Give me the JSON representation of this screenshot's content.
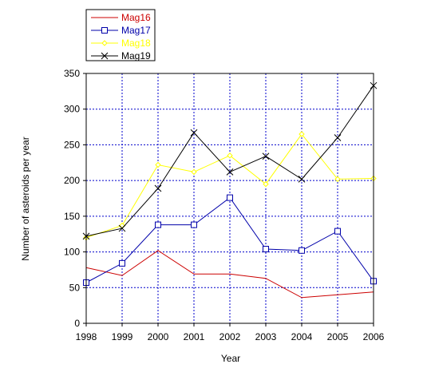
{
  "chart_data": {
    "type": "line",
    "title": "",
    "xlabel": "Year",
    "ylabel": "Number of asteroids per year",
    "x": [
      1998,
      1999,
      2000,
      2001,
      2002,
      2003,
      2004,
      2005,
      2006
    ],
    "xlim": [
      1998,
      2006
    ],
    "ylim": [
      0,
      350
    ],
    "yticks": [
      0,
      50,
      100,
      150,
      200,
      250,
      300,
      350
    ],
    "grid": true,
    "grid_style": "dotted",
    "grid_color": "#0000cc",
    "legend_position": "top-left, outside plot",
    "series": [
      {
        "name": "Mag16",
        "color": "#cc0000",
        "marker": "none",
        "values": [
          78,
          67,
          102,
          69,
          69,
          63,
          36,
          40,
          44
        ]
      },
      {
        "name": "Mag17",
        "color": "#0000aa",
        "marker": "square",
        "values": [
          57,
          84,
          138,
          138,
          176,
          104,
          102,
          129,
          59
        ]
      },
      {
        "name": "Mag18",
        "color": "#ffff00",
        "marker": "diamond",
        "values": [
          120,
          137,
          222,
          212,
          235,
          195,
          265,
          202,
          203
        ]
      },
      {
        "name": "Mag19",
        "color": "#000000",
        "marker": "x",
        "values": [
          122,
          133,
          189,
          267,
          212,
          234,
          202,
          260,
          333
        ]
      }
    ]
  }
}
